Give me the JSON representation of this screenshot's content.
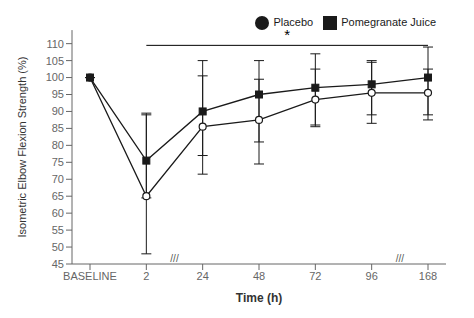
{
  "chart_data": {
    "type": "line",
    "categories": [
      "BASELINE",
      "2",
      "24",
      "48",
      "72",
      "96",
      "168"
    ],
    "series": [
      {
        "name": "Placebo",
        "color": "#1a1a1a",
        "marker": "open_circle",
        "line_style": "solid",
        "values": [
          100,
          65,
          85.5,
          87.5,
          93.5,
          95.5,
          95.5
        ],
        "error_low": [
          0,
          17,
          14,
          13,
          8,
          9,
          8
        ],
        "error_high": [
          0,
          24,
          15,
          12,
          9,
          9,
          7
        ]
      },
      {
        "name": "Pomegranate Juice",
        "color": "#1a1a1a",
        "marker": "square",
        "line_style": "solid",
        "values": [
          100,
          75.5,
          90,
          95,
          97,
          98,
          100
        ],
        "error_low": [
          0,
          11,
          13,
          14,
          11,
          9,
          11
        ],
        "error_high": [
          0,
          14,
          15,
          10,
          10,
          7,
          9
        ]
      }
    ],
    "ylim": [
      45,
      114
    ],
    "yticks": [
      45,
      50,
      55,
      60,
      65,
      70,
      75,
      80,
      85,
      90,
      95,
      100,
      105,
      110
    ],
    "ylabel": "Isometric Elbow Flexion Strength (%)",
    "xlabel": "Time (h)",
    "legend": "upper right",
    "grid": false,
    "annotations": [
      {
        "type": "bracket",
        "from": "2",
        "to": "168",
        "y": 109.5,
        "text": "*"
      },
      {
        "type": "break",
        "between": [
          "2",
          "24"
        ],
        "text": "///"
      },
      {
        "type": "break",
        "between": [
          "96",
          "168"
        ],
        "text": "///"
      }
    ]
  }
}
